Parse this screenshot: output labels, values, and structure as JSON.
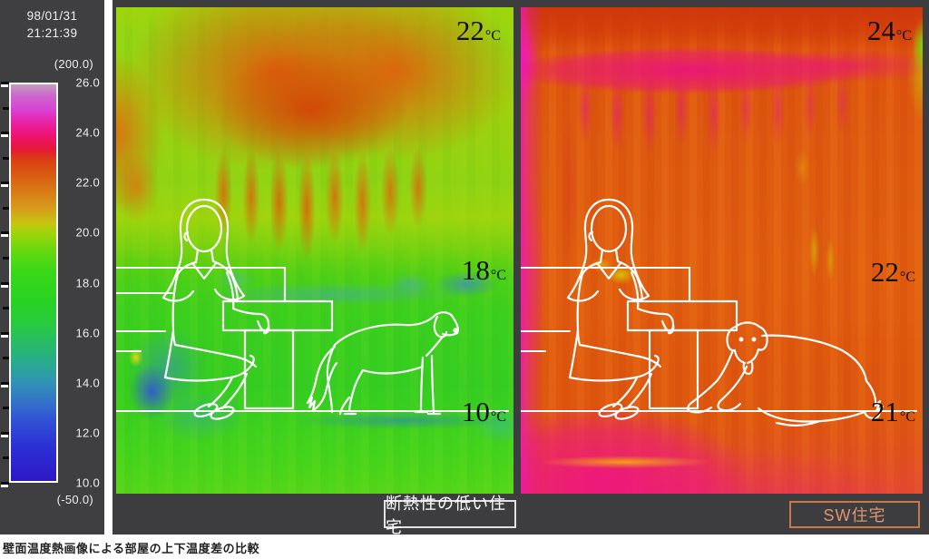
{
  "meta": {
    "timestamp_date": "98/01/31",
    "timestamp_time": "21:21:39",
    "caption": "壁面温度熱画像による部屋の上下温度差の比較"
  },
  "scale": {
    "upper_limit_label": "(200.0)",
    "lower_limit_label": "(-50.0)",
    "max": 26,
    "min": 10,
    "tick_labels": [
      "26.0",
      "24.0",
      "22.0",
      "20.0",
      "18.0",
      "16.0",
      "14.0",
      "12.0",
      "10.0"
    ],
    "gradient": [
      {
        "v": 26,
        "c": "#c49cc0"
      },
      {
        "v": 25.5,
        "c": "#cc64cc"
      },
      {
        "v": 25,
        "c": "#d844d4"
      },
      {
        "v": 24.6,
        "c": "#e428b4"
      },
      {
        "v": 24.2,
        "c": "#ec188c"
      },
      {
        "v": 23.8,
        "c": "#ec1464"
      },
      {
        "v": 23.4,
        "c": "#e41838"
      },
      {
        "v": 23,
        "c": "#dc3c14"
      },
      {
        "v": 22.5,
        "c": "#d85410"
      },
      {
        "v": 22,
        "c": "#d86c14"
      },
      {
        "v": 21,
        "c": "#d89c1c"
      },
      {
        "v": 20.4,
        "c": "#c8c410"
      },
      {
        "v": 20,
        "c": "#a0d40c"
      },
      {
        "v": 19.2,
        "c": "#60d810"
      },
      {
        "v": 18.4,
        "c": "#38d818"
      },
      {
        "v": 17.2,
        "c": "#28d224"
      },
      {
        "v": 16.4,
        "c": "#28cc3c"
      },
      {
        "v": 15.6,
        "c": "#28bc64"
      },
      {
        "v": 14.8,
        "c": "#28ac8c"
      },
      {
        "v": 14,
        "c": "#3094b4"
      },
      {
        "v": 13.2,
        "c": "#3474c8"
      },
      {
        "v": 12.4,
        "c": "#3050d4"
      },
      {
        "v": 11.4,
        "c": "#2c30d4"
      },
      {
        "v": 10,
        "c": "#2c18c4"
      }
    ]
  },
  "panels": {
    "left": {
      "label": "断熱性の低い住宅",
      "temps": [
        {
          "value": "22",
          "unit": "°C"
        },
        {
          "value": "18",
          "unit": "°C"
        },
        {
          "value": "10",
          "unit": "°C"
        }
      ]
    },
    "right": {
      "label": "SW住宅",
      "temps": [
        {
          "value": "24",
          "unit": "°C"
        },
        {
          "value": "22",
          "unit": "°C"
        },
        {
          "value": "21",
          "unit": "°C"
        }
      ]
    }
  },
  "colors": {
    "panel_bg": "#3d3d3f",
    "temp_text": "#0e0e0e",
    "caption_left_text": "#ffffff",
    "caption_left_border": "#e2e2e2",
    "caption_right_text": "#dd9670",
    "caption_right_border": "#c27b4e"
  },
  "chart_data": {
    "type": "heatmap",
    "title": "壁面温度熱画像による部屋の上下温度差の比較",
    "timestamp": "98/01/31 21:21:39",
    "colorbar": {
      "units": "°C",
      "display_min": 10.0,
      "display_max": 26.0,
      "tick_step": 2.0,
      "instrument_range": [
        -50.0,
        200.0
      ]
    },
    "panels": [
      {
        "name": "断熱性の低い住宅",
        "annotations": [
          {
            "label": "22°C",
            "position": "ceiling"
          },
          {
            "label": "18°C",
            "position": "mid-wall"
          },
          {
            "label": "10°C",
            "position": "floor"
          }
        ]
      },
      {
        "name": "SW住宅",
        "annotations": [
          {
            "label": "24°C",
            "position": "ceiling"
          },
          {
            "label": "22°C",
            "position": "mid-wall"
          },
          {
            "label": "21°C",
            "position": "floor"
          }
        ]
      }
    ],
    "legend_position": "left-colorbar",
    "grid": false
  }
}
